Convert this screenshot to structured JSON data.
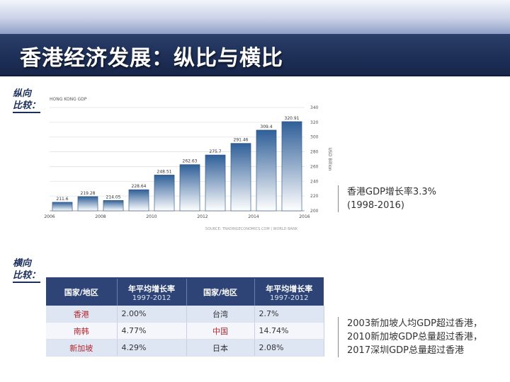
{
  "slide": {
    "title": "香港经济发展：纵比与横比",
    "section_vertical": [
      "纵向",
      "比较："
    ],
    "section_horizontal": [
      "横向",
      "比较："
    ]
  },
  "chart_data": {
    "type": "bar",
    "title": "HONG KONG GDP",
    "ylabel": "USD Billion",
    "source": "SOURCE: TRADINGECONOMICS.COM | WORLD BANK",
    "x": [
      2007,
      2008,
      2009,
      2010,
      2011,
      2012,
      2013,
      2014,
      2015,
      2016
    ],
    "values": [
      211.6,
      219.28,
      214.05,
      228.64,
      248.51,
      262.63,
      275.7,
      291.46,
      309.4,
      320.91
    ],
    "value_labels": [
      "211.6",
      "219.28",
      "214.05",
      "228.64",
      "248.51",
      "262.63",
      "275.7",
      "291.46",
      "309.4",
      "320.91"
    ],
    "x_ticks": [
      "2006",
      "2008",
      "2010",
      "2012",
      "2014",
      "2016"
    ],
    "y_ticks": [
      "200",
      "220",
      "240",
      "260",
      "280",
      "300",
      "320",
      "340"
    ],
    "ylim": [
      200,
      340
    ],
    "xlim": [
      2006,
      2016
    ],
    "grid": true,
    "bar_color_top": "#2f5f98",
    "bar_color_bottom": "#ffffff"
  },
  "notes": {
    "gdp_growth": [
      "香港GDP增长率3.3%",
      "(1998-2016)"
    ],
    "comparison": [
      "2003新加坡人均GDP超过香港，",
      "2010新加坡GDP总量超过香港，",
      "2017深圳GDP总量超过香港"
    ]
  },
  "table": {
    "headers": [
      "国家/地区",
      "年平均增长率",
      "1997-2012",
      "国家/地区",
      "年平均增长率",
      "1997-2012"
    ],
    "rows": [
      [
        "香港",
        "2.00%",
        "台湾",
        "2.7%"
      ],
      [
        "南韩",
        "4.77%",
        "中国",
        "14.74%"
      ],
      [
        "新加坡",
        "4.29%",
        "日本",
        "2.08%"
      ]
    ],
    "colors": {
      "header_bg": "#2e4476",
      "highlight_red": "#b3262c",
      "row_odd": "#dfe6f3",
      "row_even": "#f4f6fb"
    }
  }
}
